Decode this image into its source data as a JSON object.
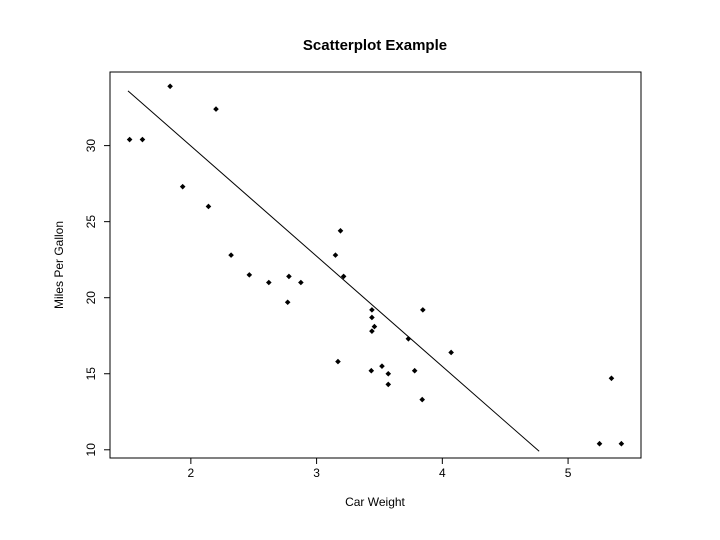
{
  "chart_data": {
    "type": "scatter",
    "title": "Scatterplot Example",
    "x_label": "Car Weight",
    "y_label": "Miles Per Gallon",
    "x": [
      2.62,
      2.875,
      2.32,
      3.215,
      3.44,
      3.46,
      3.57,
      3.19,
      3.15,
      3.44,
      3.44,
      4.07,
      3.73,
      3.78,
      5.25,
      5.424,
      5.345,
      2.2,
      1.615,
      1.835,
      2.465,
      3.52,
      3.435,
      3.84,
      3.845,
      1.935,
      2.14,
      1.513,
      3.17,
      2.77,
      3.57,
      2.78
    ],
    "y": [
      21.0,
      21.0,
      22.8,
      21.4,
      18.7,
      18.1,
      14.3,
      24.4,
      22.8,
      19.2,
      17.8,
      16.4,
      17.3,
      15.2,
      10.4,
      10.4,
      14.7,
      32.4,
      30.4,
      33.9,
      21.5,
      15.5,
      15.2,
      13.3,
      19.2,
      27.3,
      26.0,
      30.4,
      15.8,
      19.7,
      15.0,
      21.4
    ],
    "color": "#000000",
    "fit_line": {
      "x": [
        1.5,
        4.77
      ],
      "y": [
        33.6,
        9.9
      ],
      "color": "#000000"
    },
    "xlim": [
      1.357,
      5.58
    ],
    "ylim": [
      9.46,
      34.84
    ],
    "xticks": [
      2,
      3,
      4,
      5
    ],
    "yticks": [
      10,
      15,
      20,
      25,
      30
    ]
  }
}
